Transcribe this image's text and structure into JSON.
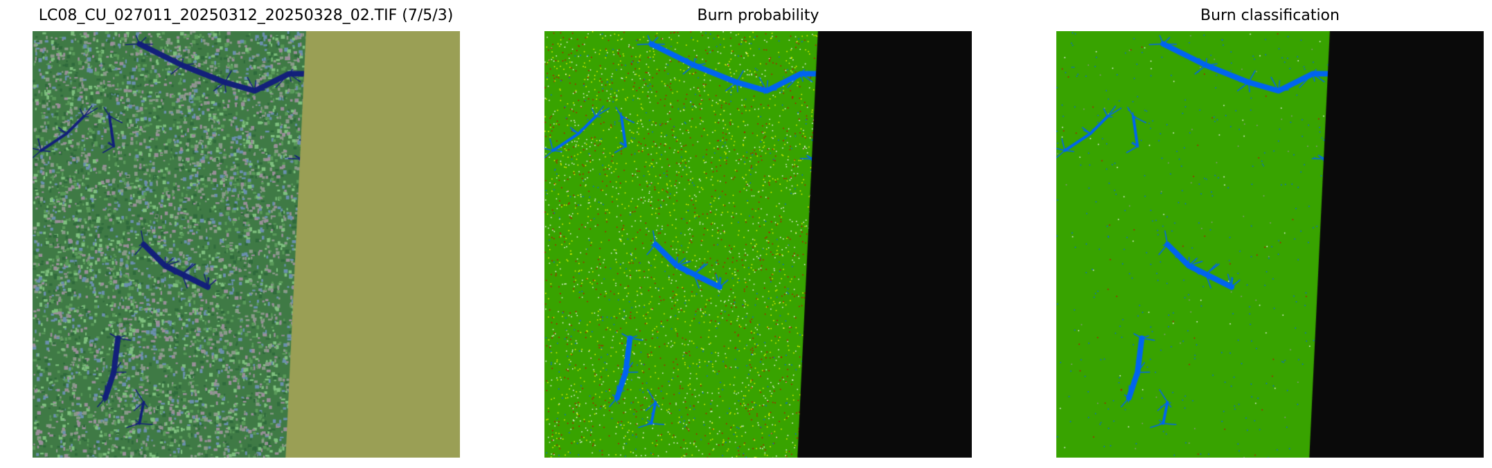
{
  "chart_data": [
    {
      "type": "heatmap",
      "title": "LC08_CU_027011_20250312_20250328_02.TIF (7/5/3)",
      "kind": "false-color-composite",
      "bands": "7/5/3",
      "nodata_color": "#9a9f55",
      "land_color": "#3f7a45",
      "water_color": "#13207a",
      "nodata_region": "right",
      "grid": false,
      "axes": "off"
    },
    {
      "type": "heatmap",
      "title": "Burn probability",
      "nodata_color": "#0a0a0a",
      "land_color": "#38a300",
      "water_color": "#0064f0",
      "speckle_colors": [
        "#ffff00",
        "#cc0000",
        "#ffffff"
      ],
      "grid": false,
      "axes": "off"
    },
    {
      "type": "heatmap",
      "title": "Burn classification",
      "nodata_color": "#0a0a0a",
      "land_color": "#38a300",
      "water_color": "#0064f0",
      "speckle_colors": [
        "#ffffff",
        "#cc0000",
        "#999999"
      ],
      "grid": false,
      "axes": "off"
    }
  ]
}
